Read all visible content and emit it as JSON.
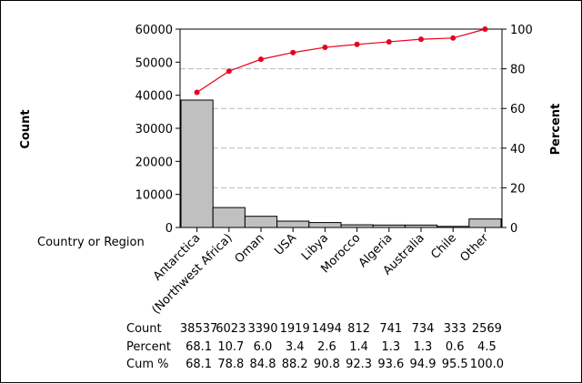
{
  "chart_data": {
    "type": "bar",
    "title": "",
    "ylabel_left": "Count",
    "ylabel_right": "Percent",
    "xlabel": "Country or Region",
    "ylim_left": [
      0,
      60000
    ],
    "ylim_right": [
      0,
      100
    ],
    "left_ticks": [
      "0",
      "10000",
      "20000",
      "30000",
      "40000",
      "50000",
      "60000"
    ],
    "right_ticks": [
      "0",
      "20",
      "40",
      "60",
      "80",
      "100"
    ],
    "grid": "dashed horizontal at right-axis ticks",
    "categories": [
      "Antarctica",
      "(Northwest Africa)",
      "Oman",
      "USA",
      "Libya",
      "Morocco",
      "Algeria",
      "Australia",
      "Chile",
      "Other"
    ],
    "series": [
      {
        "name": "Count",
        "values": [
          38537,
          6023,
          3390,
          1919,
          1494,
          812,
          741,
          734,
          333,
          2569
        ],
        "color": "#c0c0c0"
      },
      {
        "name": "Cum %",
        "values": [
          68.1,
          78.8,
          84.8,
          88.2,
          90.8,
          92.3,
          93.6,
          94.9,
          95.5,
          100.0
        ],
        "color": "#e8001c"
      }
    ],
    "table": {
      "row_labels": [
        "Count",
        "Percent",
        "Cum %"
      ],
      "count": [
        "38537",
        "6023",
        "3390",
        "1919",
        "1494",
        "812",
        "741",
        "734",
        "333",
        "2569"
      ],
      "percent": [
        "68.1",
        "10.7",
        "6.0",
        "3.4",
        "2.6",
        "1.4",
        "1.3",
        "1.3",
        "0.6",
        "4.5"
      ],
      "cum": [
        "68.1",
        "78.8",
        "84.8",
        "88.2",
        "90.8",
        "92.3",
        "93.6",
        "94.9",
        "95.5",
        "100.0"
      ]
    }
  }
}
